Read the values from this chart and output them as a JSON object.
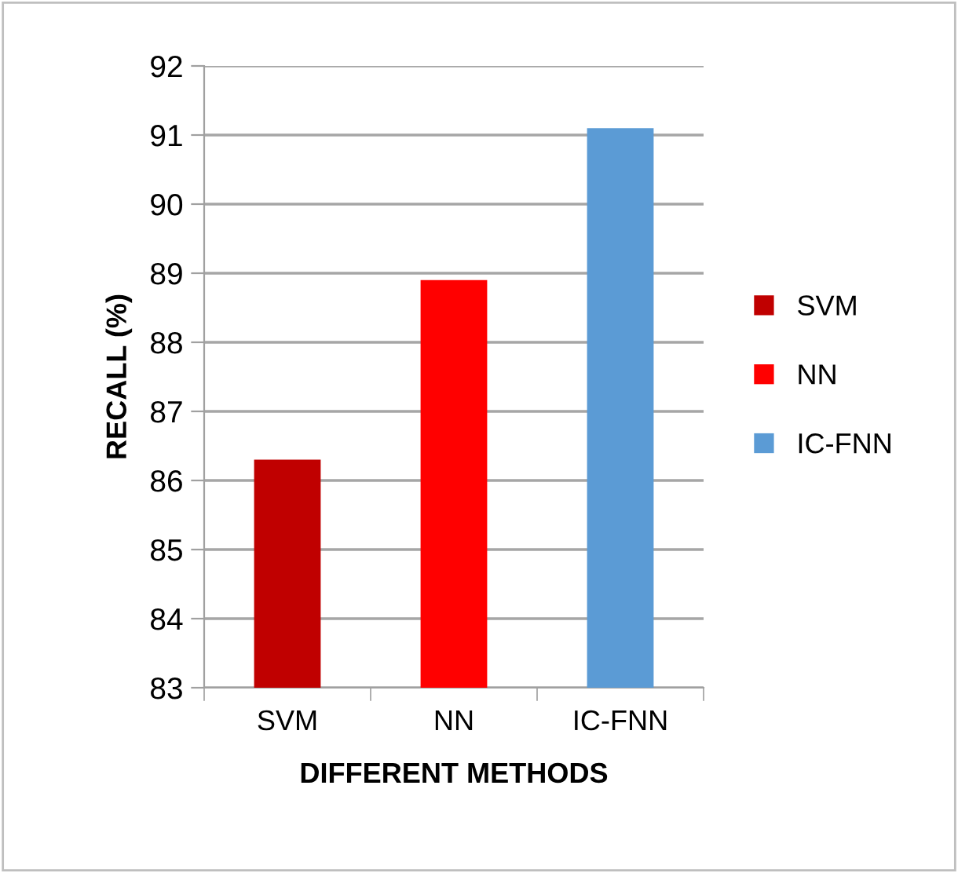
{
  "chart_data": {
    "type": "bar",
    "categories": [
      "SVM",
      "NN",
      "IC-FNN"
    ],
    "series": [
      {
        "name": "SVM",
        "color": "#c00000",
        "values": [
          86.3,
          null,
          null
        ]
      },
      {
        "name": "NN",
        "color": "#ff0000",
        "values": [
          null,
          88.9,
          null
        ]
      },
      {
        "name": "IC-FNN",
        "color": "#5b9bd5",
        "values": [
          null,
          null,
          91.1
        ]
      }
    ],
    "xlabel": "DIFFERENT METHODS",
    "ylabel": "RECALL (%)",
    "ylim": [
      83,
      92
    ],
    "yticks": [
      83,
      84,
      85,
      86,
      87,
      88,
      89,
      90,
      91,
      92
    ],
    "grid": "y",
    "legend": "right"
  }
}
